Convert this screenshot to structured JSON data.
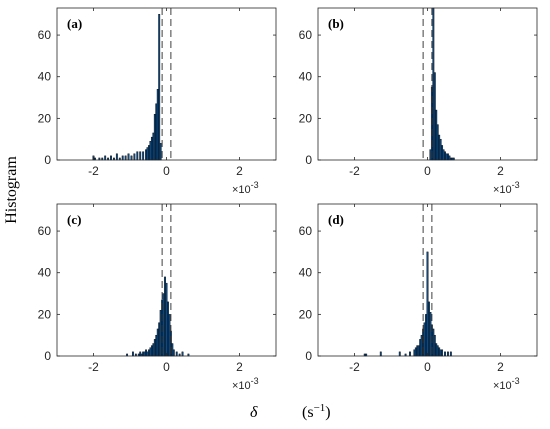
{
  "figure": {
    "ylabel": "Histogram",
    "xlabel_symbol": "δ",
    "xlabel_unit_base": "(s",
    "xlabel_unit_exp": "−1",
    "xlabel_unit_close": ")"
  },
  "chart_data": [
    {
      "type": "bar",
      "panel": "(a)",
      "xlim": [
        -3,
        3
      ],
      "ylim": [
        0,
        73
      ],
      "x_ticks": [
        -2,
        0,
        2
      ],
      "y_ticks": [
        0,
        20,
        40,
        60
      ],
      "x_multiplier": "×10",
      "x_multiplier_exp": "-3",
      "bin_width": 0.04,
      "dashed_lines": [
        -0.12,
        0.12
      ],
      "bin_centers": [
        -2.0,
        -1.96,
        -1.84,
        -1.76,
        -1.68,
        -1.6,
        -1.52,
        -1.44,
        -1.36,
        -1.28,
        -1.2,
        -1.12,
        -1.04,
        -0.96,
        -0.88,
        -0.8,
        -0.72,
        -0.64,
        -0.56,
        -0.52,
        -0.48,
        -0.44,
        -0.4,
        -0.36,
        -0.32,
        -0.28,
        -0.24,
        -0.2,
        -0.16
      ],
      "counts": [
        2,
        1,
        1,
        1,
        2,
        1,
        2,
        1,
        3,
        1,
        2,
        2,
        3,
        2,
        3,
        4,
        4,
        4,
        5,
        6,
        7,
        9,
        11,
        13,
        22,
        27,
        34,
        70,
        8
      ]
    },
    {
      "type": "bar",
      "panel": "(b)",
      "xlim": [
        -3,
        3
      ],
      "ylim": [
        0,
        73
      ],
      "x_ticks": [
        -2,
        0,
        2
      ],
      "y_ticks": [
        0,
        20,
        40,
        60
      ],
      "x_multiplier": "×10",
      "x_multiplier_exp": "-3",
      "bin_width": 0.04,
      "dashed_lines": [
        -0.12,
        0.12
      ],
      "bin_centers": [
        0.08,
        0.12,
        0.16,
        0.2,
        0.24,
        0.28,
        0.32,
        0.36,
        0.4,
        0.44,
        0.48,
        0.52,
        0.56,
        0.6,
        0.64,
        0.68,
        0.72
      ],
      "counts": [
        5,
        35,
        73,
        42,
        24,
        17,
        12,
        10,
        7,
        5,
        4,
        3,
        3,
        2,
        1,
        1,
        1
      ]
    },
    {
      "type": "bar",
      "panel": "(c)",
      "xlim": [
        -3,
        3
      ],
      "ylim": [
        0,
        73
      ],
      "x_ticks": [
        -2,
        0,
        2
      ],
      "y_ticks": [
        0,
        20,
        40,
        60
      ],
      "x_multiplier": "×10",
      "x_multiplier_exp": "-3",
      "bin_width": 0.04,
      "dashed_lines": [
        -0.12,
        0.12
      ],
      "bin_centers": [
        -1.08,
        -0.92,
        -0.84,
        -0.76,
        -0.72,
        -0.68,
        -0.64,
        -0.6,
        -0.56,
        -0.52,
        -0.48,
        -0.44,
        -0.4,
        -0.36,
        -0.32,
        -0.28,
        -0.24,
        -0.2,
        -0.16,
        -0.12,
        -0.08,
        -0.04,
        0.0,
        0.04,
        0.08,
        0.12,
        0.16,
        0.2,
        0.28,
        0.36,
        0.44,
        0.6
      ],
      "counts": [
        1,
        2,
        1,
        1,
        2,
        1,
        2,
        2,
        3,
        2,
        3,
        4,
        5,
        6,
        8,
        10,
        13,
        16,
        22,
        27,
        30,
        38,
        35,
        26,
        20,
        12,
        6,
        3,
        2,
        1,
        2,
        1
      ]
    },
    {
      "type": "bar",
      "panel": "(d)",
      "xlim": [
        -3,
        3
      ],
      "ylim": [
        0,
        73
      ],
      "x_ticks": [
        -2,
        0,
        2
      ],
      "y_ticks": [
        0,
        20,
        40,
        60
      ],
      "x_multiplier": "×10",
      "x_multiplier_exp": "-3",
      "bin_width": 0.04,
      "dashed_lines": [
        -0.12,
        0.12
      ],
      "bin_centers": [
        -1.72,
        -1.68,
        -1.28,
        -0.76,
        -0.6,
        -0.48,
        -0.36,
        -0.32,
        -0.28,
        -0.24,
        -0.2,
        -0.16,
        -0.12,
        -0.08,
        -0.04,
        0.0,
        0.04,
        0.08,
        0.12,
        0.16,
        0.2,
        0.24,
        0.28,
        0.32,
        0.36,
        0.4,
        0.48,
        0.56,
        0.64
      ],
      "counts": [
        1,
        1,
        2,
        2,
        1,
        2,
        3,
        4,
        5,
        5,
        8,
        10,
        13,
        16,
        20,
        50,
        26,
        21,
        15,
        13,
        10,
        6,
        5,
        4,
        3,
        3,
        2,
        2,
        2
      ]
    }
  ]
}
